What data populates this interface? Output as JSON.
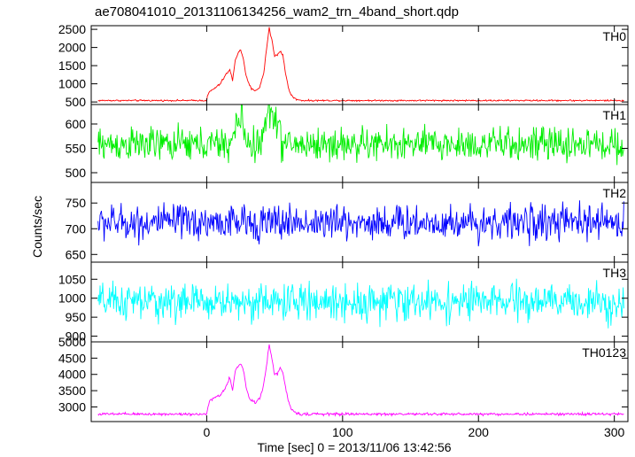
{
  "chart_data": {
    "type": "line",
    "title": "ae708041010_20131106134256_wam2_trn_4band_short.qdp",
    "xlabel": "Time [sec] 0 = 2013/11/06 13:42:56",
    "ylabel": "Counts/sec",
    "xlim": [
      -85,
      310
    ],
    "x_ticks": [
      0,
      100,
      200,
      300
    ],
    "panels": [
      {
        "name": "TH0",
        "color": "#ff0000",
        "ylim": [
          430,
          2600
        ],
        "y_ticks": [
          500,
          1000,
          1500,
          2000,
          2500
        ],
        "baseline": 540,
        "noise": 18,
        "burst": [
          {
            "x": [
              0,
              2,
              6,
              10,
              14,
              17,
              19,
              21,
              23,
              25,
              27,
              29,
              31,
              33,
              36,
              39,
              42,
              44,
              46,
              48,
              50,
              52,
              54,
              56,
              58,
              60,
              62,
              64,
              66,
              70
            ],
            "y": [
              600,
              780,
              880,
              1000,
              1250,
              1380,
              1100,
              1650,
              1850,
              1920,
              1700,
              1200,
              1000,
              850,
              820,
              900,
              1300,
              1950,
              2550,
              2200,
              1750,
              1800,
              1900,
              1800,
              1300,
              900,
              700,
              620,
              570,
              550
            ]
          }
        ]
      },
      {
        "name": "TH1",
        "color": "#00ee00",
        "ylim": [
          480,
          640
        ],
        "y_ticks": [
          500,
          550,
          600
        ],
        "baseline": 558,
        "noise": 30,
        "burst": [
          {
            "x": [
              18,
              22,
              26,
              30
            ],
            "y": [
              558,
              600,
              610,
              560
            ]
          },
          {
            "x": [
              40,
              45,
              50,
              55
            ],
            "y": [
              560,
              620,
              625,
              565
            ]
          }
        ]
      },
      {
        "name": "TH2",
        "color": "#0000ff",
        "ylim": [
          635,
          790
        ],
        "y_ticks": [
          650,
          700,
          750
        ],
        "baseline": 712,
        "noise": 30,
        "burst": []
      },
      {
        "name": "TH3",
        "color": "#00ffff",
        "ylim": [
          885,
          1095
        ],
        "y_ticks": [
          900,
          950,
          1000,
          1050
        ],
        "baseline": 990,
        "noise": 42,
        "burst": []
      },
      {
        "name": "TH0123",
        "color": "#ff00ff",
        "ylim": [
          2550,
          5000
        ],
        "y_ticks": [
          3000,
          3500,
          4000,
          4500,
          5000
        ],
        "baseline": 2780,
        "noise": 35,
        "burst": [
          {
            "x": [
              0,
              2,
              6,
              10,
              14,
              17,
              19,
              21,
              23,
              25,
              27,
              29,
              31,
              33,
              36,
              39,
              42,
              44,
              46,
              48,
              50,
              52,
              54,
              56,
              58,
              60,
              62,
              64,
              66,
              70
            ],
            "y": [
              2850,
              3150,
              3300,
              3350,
              3600,
              3900,
              3500,
              4100,
              4250,
              4350,
              4150,
              3600,
              3300,
              3200,
              3150,
              3250,
              3700,
              4300,
              4900,
              4500,
              4000,
              4000,
              4200,
              4050,
              3600,
              3200,
              2950,
              2850,
              2800,
              2790
            ]
          }
        ]
      }
    ]
  }
}
